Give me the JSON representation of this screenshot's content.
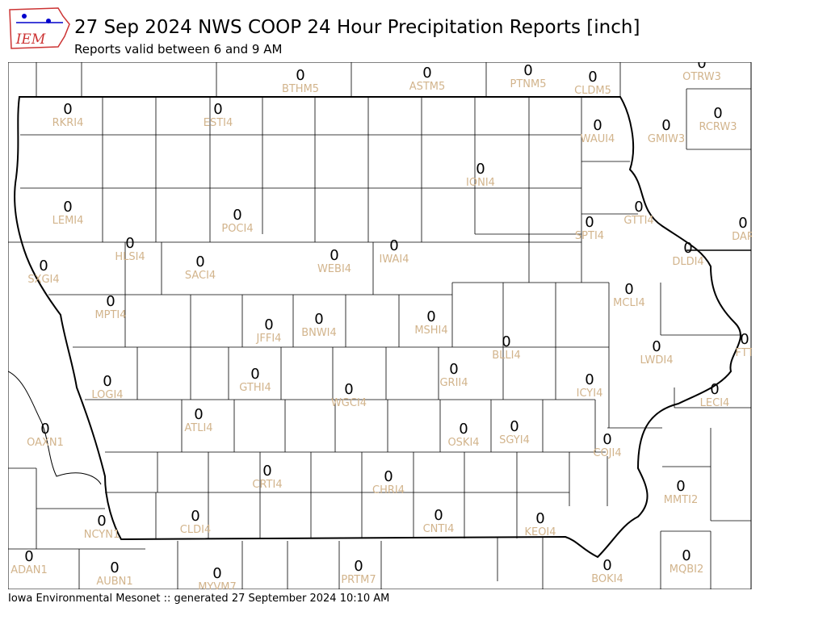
{
  "header": {
    "title": "27 Sep 2024 NWS COOP 24 Hour Precipitation Reports [inch]",
    "subtitle": "Reports valid between 6 and 9 AM"
  },
  "logo": {
    "text": "IEM"
  },
  "footer": "Iowa Environmental Mesonet :: generated 27 September 2024 10:10 AM",
  "stations": [
    {
      "id": "BTHM5",
      "value": 0
    },
    {
      "id": "ASTM5",
      "value": 0
    },
    {
      "id": "PTNM5",
      "value": 0
    },
    {
      "id": "CLDM5",
      "value": 0
    },
    {
      "id": "OTRW3",
      "value": 0
    },
    {
      "id": "RKRI4",
      "value": 0
    },
    {
      "id": "ESTI4",
      "value": 0
    },
    {
      "id": "RCRW3",
      "value": 0
    },
    {
      "id": "WAUI4",
      "value": 0
    },
    {
      "id": "GMIW3",
      "value": 0
    },
    {
      "id": "IONI4",
      "value": 0
    },
    {
      "id": "LEMI4",
      "value": 0
    },
    {
      "id": "POCI4",
      "value": 0
    },
    {
      "id": "SPTI4",
      "value": 0
    },
    {
      "id": "GTTI4",
      "value": 0
    },
    {
      "id": "DAR",
      "value": 0
    },
    {
      "id": "HLSI4",
      "value": 0
    },
    {
      "id": "DLDI4",
      "value": 0
    },
    {
      "id": "SXGI4",
      "value": 0
    },
    {
      "id": "SACI4",
      "value": 0
    },
    {
      "id": "WEBI4",
      "value": 0
    },
    {
      "id": "IWAI4",
      "value": 0
    },
    {
      "id": "MCLI4",
      "value": 0
    },
    {
      "id": "MPTI4",
      "value": 0
    },
    {
      "id": "MSHI4",
      "value": 0
    },
    {
      "id": "JFFI4",
      "value": 0
    },
    {
      "id": "BNWI4",
      "value": 0
    },
    {
      "id": "BLLI4",
      "value": 0
    },
    {
      "id": "FTT",
      "value": 0
    },
    {
      "id": "LWDI4",
      "value": 0
    },
    {
      "id": "GRII4",
      "value": 0
    },
    {
      "id": "LOGI4",
      "value": 0
    },
    {
      "id": "GTHI4",
      "value": 0
    },
    {
      "id": "ICYI4",
      "value": 0
    },
    {
      "id": "WGCI4",
      "value": 0
    },
    {
      "id": "LECI4",
      "value": 0
    },
    {
      "id": "ATLI4",
      "value": 0
    },
    {
      "id": "OAXN1",
      "value": 0
    },
    {
      "id": "OSKI4",
      "value": 0
    },
    {
      "id": "SGYI4",
      "value": 0
    },
    {
      "id": "COJI4",
      "value": 0
    },
    {
      "id": "CRTI4",
      "value": 0
    },
    {
      "id": "CHRI4",
      "value": 0
    },
    {
      "id": "MMTI2",
      "value": 0
    },
    {
      "id": "CLDI4",
      "value": 0
    },
    {
      "id": "CNTI4",
      "value": 0
    },
    {
      "id": "KEOI4",
      "value": 0
    },
    {
      "id": "NCYN1",
      "value": 0
    },
    {
      "id": "ADAN1",
      "value": 0
    },
    {
      "id": "AUBN1",
      "value": 0
    },
    {
      "id": "MYVM7",
      "value": 0
    },
    {
      "id": "PRTM7",
      "value": 0
    },
    {
      "id": "MQBI2",
      "value": 0
    },
    {
      "id": "BOKI4",
      "value": 0
    }
  ]
}
